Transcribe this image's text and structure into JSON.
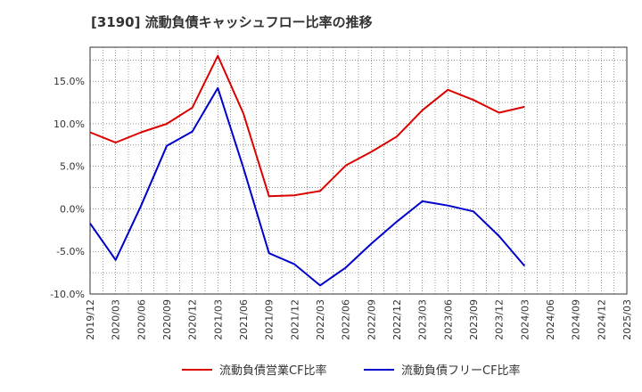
{
  "chart_data": {
    "type": "line",
    "title": "[3190]  流動負債キャッシュフロー比率の推移",
    "x": [
      "2019/12",
      "2020/03",
      "2020/06",
      "2020/09",
      "2020/12",
      "2021/03",
      "2021/06",
      "2021/09",
      "2021/12",
      "2022/03",
      "2022/06",
      "2022/09",
      "2022/12",
      "2023/03",
      "2023/06",
      "2023/09",
      "2023/12",
      "2024/03"
    ],
    "x_ticks": [
      "2019/12",
      "2020/03",
      "2020/06",
      "2020/09",
      "2020/12",
      "2021/03",
      "2021/06",
      "2021/09",
      "2021/12",
      "2022/03",
      "2022/06",
      "2022/09",
      "2022/12",
      "2023/03",
      "2023/06",
      "2023/09",
      "2023/12",
      "2024/03",
      "2024/06",
      "2024/09",
      "2024/12",
      "2025/03"
    ],
    "y_ticks": [
      "-10.0%",
      "-5.0%",
      "0.0%",
      "5.0%",
      "10.0%",
      "15.0%"
    ],
    "ylim": [
      -10,
      19
    ],
    "grid": true,
    "legend_position": "bottom",
    "series": [
      {
        "name": "流動負債営業CF比率",
        "color": "#dd0000",
        "values": [
          9.0,
          7.8,
          9.0,
          10.0,
          11.9,
          18.0,
          11.2,
          1.5,
          1.6,
          2.1,
          5.1,
          6.7,
          8.5,
          11.6,
          14.0,
          12.8,
          11.3,
          12.0
        ]
      },
      {
        "name": "流動負債フリーCF比率",
        "color": "#0000cc",
        "values": [
          -1.7,
          -6.0,
          0.4,
          7.4,
          9.1,
          14.2,
          4.8,
          -5.2,
          -6.5,
          -9.0,
          -6.9,
          -4.1,
          -1.5,
          0.9,
          0.4,
          -0.3,
          -3.2,
          -6.7
        ]
      }
    ]
  }
}
